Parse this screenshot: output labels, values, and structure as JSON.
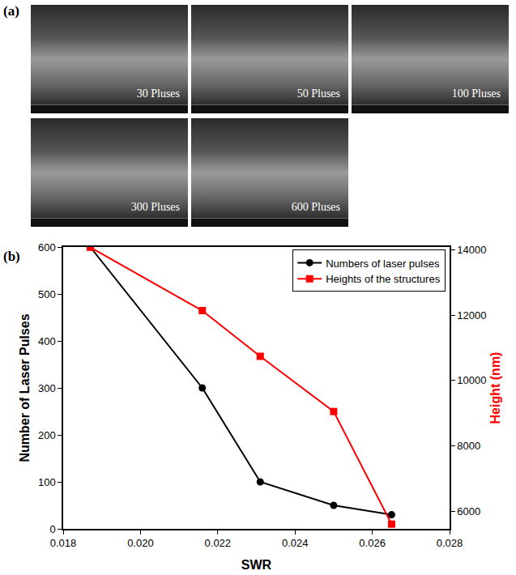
{
  "panels": {
    "a": {
      "label": "(a)",
      "images": [
        "30 Pluses",
        "50 Pluses",
        "100 Pluses",
        "300 Pluses",
        "600 Pluses"
      ]
    }
  },
  "chart_data": {
    "panel_label": "(b)",
    "type": "line",
    "x_label": "SWR",
    "y_label": "Number of Laser Pulses",
    "y2_label": "Height (nm)",
    "x": [
      0.0187,
      0.0216,
      0.0231,
      0.025,
      0.0265
    ],
    "series": [
      {
        "name": "Numbers of laser pulses",
        "color": "#000000",
        "marker": "circle",
        "values": [
          600,
          300,
          100,
          50,
          30
        ]
      },
      {
        "name": "Heights of the structures",
        "color": "#ff0000",
        "marker": "square",
        "axis": "y2",
        "values": [
          14080,
          12140,
          10740,
          9050,
          5600
        ]
      }
    ],
    "xlim": [
      0.018,
      0.028
    ],
    "xticks": [
      0.018,
      {
        "value": 0.02,
        "label": "0.020"
      },
      0.022,
      0.024,
      0.026,
      0.028
    ],
    "ylim": [
      0,
      600
    ],
    "yticks": [
      0,
      100,
      200,
      300,
      400,
      500,
      600
    ],
    "y2lim": [
      5456,
      14088
    ],
    "y2ticks": [
      6000,
      8000,
      10000,
      12000,
      14000
    ],
    "grid": false,
    "legend": "upper right"
  }
}
